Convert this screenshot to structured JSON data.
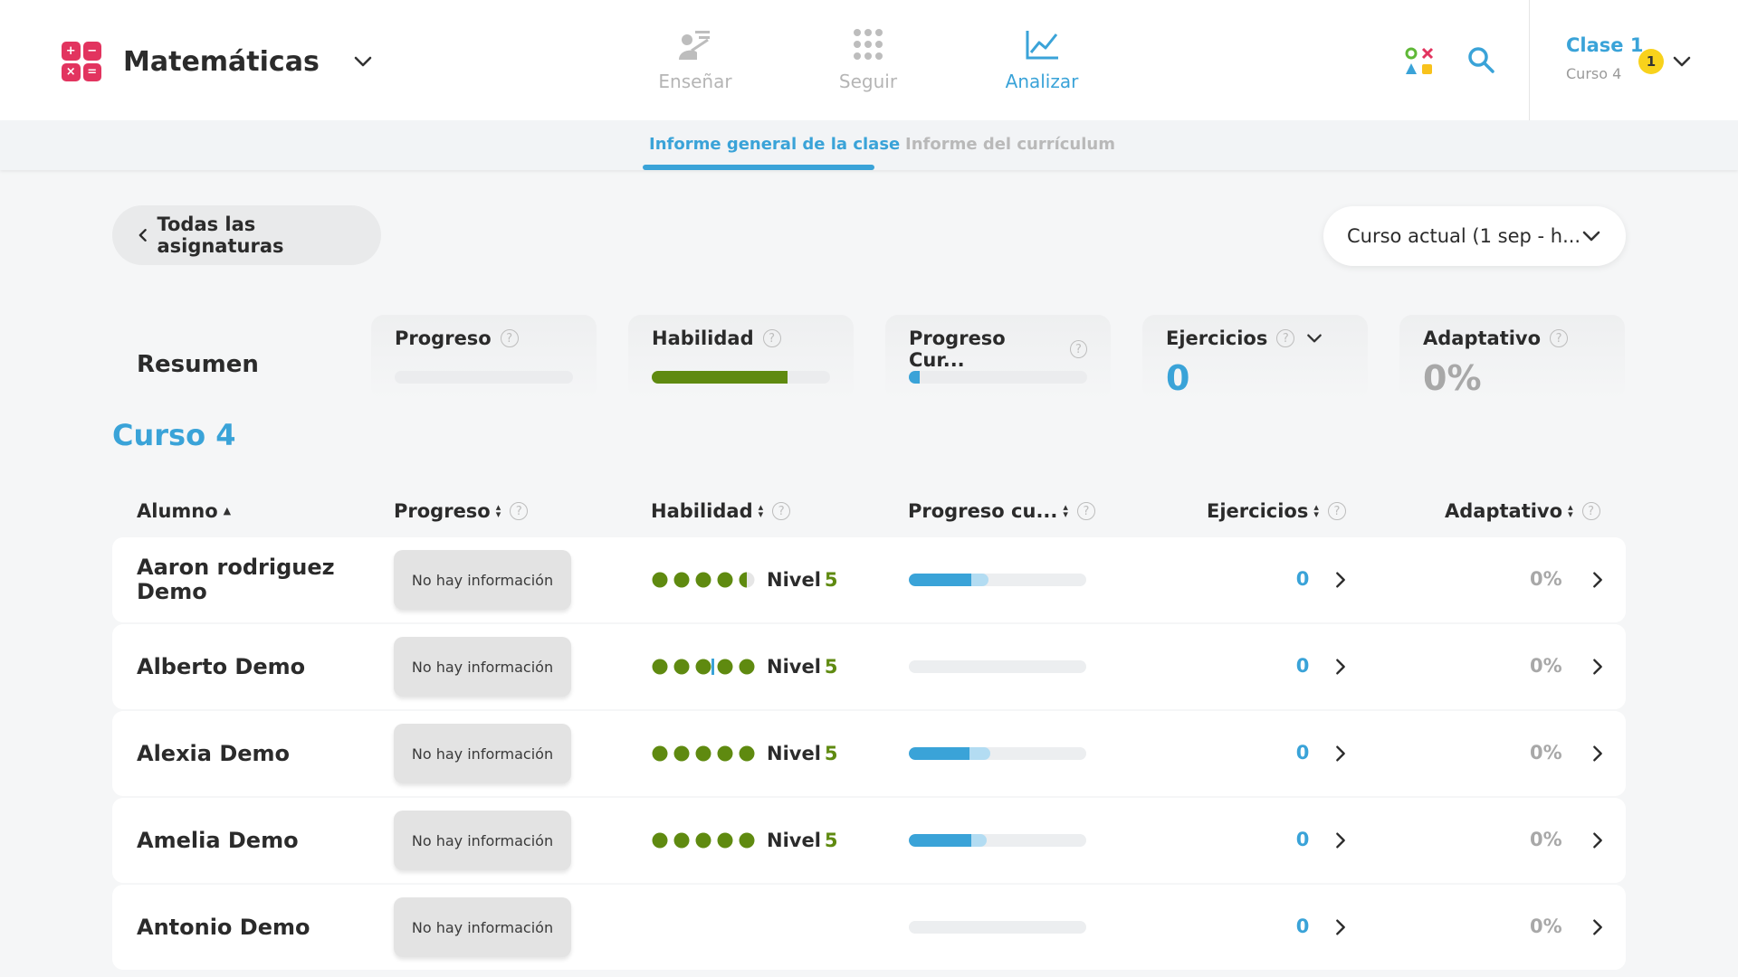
{
  "app": {
    "subject": "Matemáticas",
    "logo_symbols": [
      "+",
      "−",
      "×",
      "="
    ]
  },
  "nav": {
    "teach": "Enseñar",
    "follow": "Seguir",
    "analyze": "Analizar"
  },
  "class_selector": {
    "name": "Clase 1",
    "course": "Curso 4",
    "notifications": "1"
  },
  "subtabs": {
    "overview": "Informe general de la clase",
    "curriculum": "Informe del currículum"
  },
  "back_label": "Todas las asignaturas",
  "period_label": "Curso actual (1 sep - h...",
  "summary": {
    "title": "Resumen",
    "progress_label": "Progreso",
    "progress_fraction": 0,
    "skill_label": "Habilidad",
    "skill_fraction": 0.76,
    "curr_progress_label": "Progreso Cur...",
    "curr_progress_fraction": 0.06,
    "exercises_label": "Ejercicios",
    "exercises_value": "0",
    "adaptive_label": "Adaptativo",
    "adaptive_value": "0%"
  },
  "course_heading": "Curso 4",
  "columns": {
    "student": "Alumno",
    "progress": "Progreso",
    "skill": "Habilidad",
    "curr_progress": "Progreso cu...",
    "exercises": "Ejercicios",
    "adaptive": "Adaptativo"
  },
  "help_glyph": "?",
  "students": [
    {
      "name_line1": "Aaron rodriguez",
      "name_line2": "Demo",
      "progress": "No hay información",
      "skill_dots": 4.5,
      "level_label": "Nivel",
      "level": "5",
      "curr_primary": 0.35,
      "curr_secondary": 0.45,
      "exercises": "0",
      "adaptive": "0%"
    },
    {
      "name_line1": "Alberto Demo",
      "name_line2": "",
      "progress": "No hay información",
      "skill_dots": 5,
      "skill_marker": true,
      "level_label": "Nivel",
      "level": "5",
      "curr_primary": 0,
      "curr_secondary": 0,
      "exercises": "0",
      "adaptive": "0%"
    },
    {
      "name_line1": "Alexia Demo",
      "name_line2": "",
      "progress": "No hay información",
      "skill_dots": 5,
      "level_label": "Nivel",
      "level": "5",
      "curr_primary": 0.34,
      "curr_secondary": 0.46,
      "exercises": "0",
      "adaptive": "0%"
    },
    {
      "name_line1": "Amelia Demo",
      "name_line2": "",
      "progress": "No hay información",
      "skill_dots": 5,
      "level_label": "Nivel",
      "level": "5",
      "curr_primary": 0.35,
      "curr_secondary": 0.44,
      "exercises": "0",
      "adaptive": "0%"
    },
    {
      "name_line1": "Antonio Demo",
      "name_line2": "",
      "progress": "No hay información",
      "skill_dots": 0,
      "level_label": "",
      "level": "",
      "curr_primary": 0,
      "curr_secondary": 0,
      "exercises": "0",
      "adaptive": "0%"
    }
  ],
  "colors": {
    "accent": "#3aa3d8",
    "skill_green": "#5f8a10",
    "logo": [
      "#e2345f",
      "#e2345f",
      "#e2345f",
      "#e2345f"
    ]
  }
}
